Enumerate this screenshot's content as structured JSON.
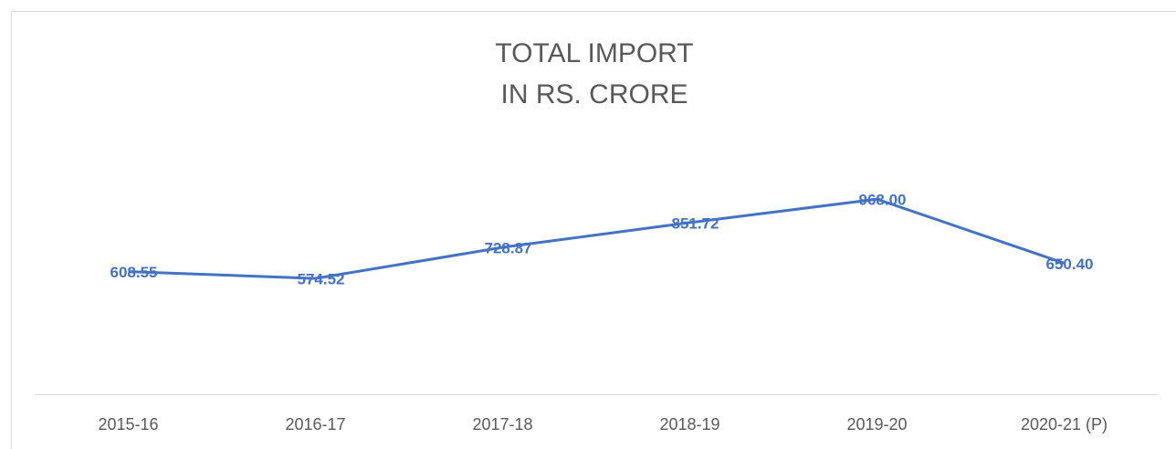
{
  "chart_data": {
    "type": "line",
    "title": [
      "TOTAL IMPORT",
      "IN RS. CRORE"
    ],
    "categories": [
      "2015-16",
      "2016-17",
      "2017-18",
      "2018-19",
      "2019-20",
      "2020-21 (P)"
    ],
    "series": [
      {
        "color": "#4472c4",
        "values": [
          608.55,
          574.52,
          728.87,
          851.72,
          968,
          650.4
        ],
        "value_labels": [
          "608.55",
          "574.52",
          "728.87",
          "851.72",
          "968.00",
          "650.40"
        ]
      }
    ],
    "ylim": [
      0,
      1200
    ]
  }
}
